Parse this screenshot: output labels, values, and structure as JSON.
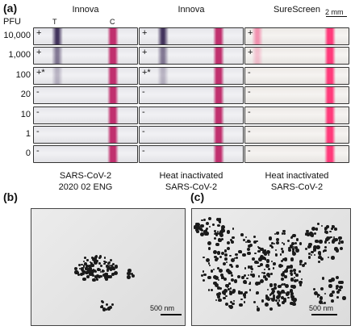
{
  "panel_a": {
    "label": "(a)",
    "pfu_header": "PFU",
    "t_label": "T",
    "c_label": "C",
    "scale_label": "2 mm",
    "columns": [
      {
        "title": "Innova",
        "caption_line1": "SARS-CoV-2",
        "caption_line2": "2020 02 ENG",
        "signs": [
          "+",
          "+",
          "+*",
          "-",
          "-",
          "-",
          "-"
        ]
      },
      {
        "title": "Innova",
        "caption_line1": "Heat inactivated",
        "caption_line2": "SARS-CoV-2",
        "signs": [
          "+",
          "+",
          "+*",
          "-",
          "-",
          "-",
          "-"
        ]
      },
      {
        "title": "SureScreen",
        "caption_line1": "Heat inactivated",
        "caption_line2": "SARS-CoV-2",
        "signs": [
          "+",
          "+",
          "-",
          "-",
          "-",
          "-",
          "-"
        ]
      }
    ],
    "pfu_rows": [
      "10,000",
      "1,000",
      "100",
      "20",
      "10",
      "1",
      "0"
    ]
  },
  "panel_b": {
    "label": "(b)",
    "scale_label": "500 nm"
  },
  "panel_c": {
    "label": "(c)",
    "scale_label": "500 nm"
  },
  "colors": {
    "innova_control": "#c0306e",
    "innova_test": "#3a2a55",
    "sure_control": "#ff3a7a",
    "sure_test": "#f27aa0"
  }
}
